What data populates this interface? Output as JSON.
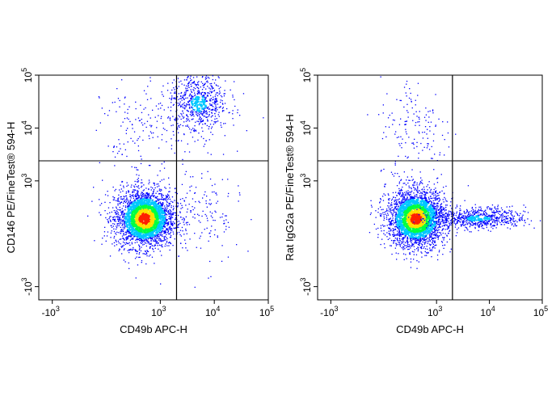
{
  "chart_data": [
    {
      "type": "scatter",
      "xlabel": "CD49b APC-H",
      "ylabel": "CD146 PE/FineTest® 594-H",
      "x_ticks": [
        {
          "base": "-10",
          "exp": "3"
        },
        {
          "base": "10",
          "exp": "3"
        },
        {
          "base": "10",
          "exp": "4"
        },
        {
          "base": "10",
          "exp": "5"
        }
      ],
      "y_ticks": [
        {
          "base": "-10",
          "exp": "3"
        },
        {
          "base": "10",
          "exp": "3"
        },
        {
          "base": "10",
          "exp": "4"
        },
        {
          "base": "10",
          "exp": "5"
        }
      ],
      "gate_x": 2000,
      "gate_y": 2400,
      "populations": [
        {
          "name": "negative",
          "x": 700,
          "y": 300,
          "density": "high"
        },
        {
          "name": "CD146+ CD49b+",
          "x": 5000,
          "y": 30000,
          "density": "medium"
        },
        {
          "name": "CD49b+ CD146-",
          "x": 6000,
          "y": 400,
          "density": "low"
        },
        {
          "name": "CD146+ CD49b-",
          "x": 600,
          "y": 8000,
          "density": "low"
        }
      ]
    },
    {
      "type": "scatter",
      "xlabel": "CD49b APC-H",
      "ylabel": "Rat IgG2a PE/FineTest® 594-H",
      "x_ticks": [
        {
          "base": "-10",
          "exp": "3"
        },
        {
          "base": "10",
          "exp": "3"
        },
        {
          "base": "10",
          "exp": "4"
        },
        {
          "base": "10",
          "exp": "5"
        }
      ],
      "y_ticks": [
        {
          "base": "-10",
          "exp": "3"
        },
        {
          "base": "10",
          "exp": "3"
        },
        {
          "base": "10",
          "exp": "4"
        },
        {
          "base": "10",
          "exp": "5"
        }
      ],
      "gate_x": 2000,
      "gate_y": 2400,
      "populations": [
        {
          "name": "negative",
          "x": 600,
          "y": 300,
          "density": "high"
        },
        {
          "name": "CD49b+",
          "x": 6000,
          "y": 300,
          "density": "medium"
        },
        {
          "name": "CD49b- upper tail",
          "x": 600,
          "y": 10000,
          "density": "low"
        }
      ]
    }
  ],
  "colors": {
    "density_low": "#0000ff",
    "density_mid": "#00c8ff",
    "density_midhigh": "#00ff40",
    "density_high": "#ffe000",
    "density_peak": "#ff2000",
    "axis": "#000000",
    "gate": "#000000"
  }
}
